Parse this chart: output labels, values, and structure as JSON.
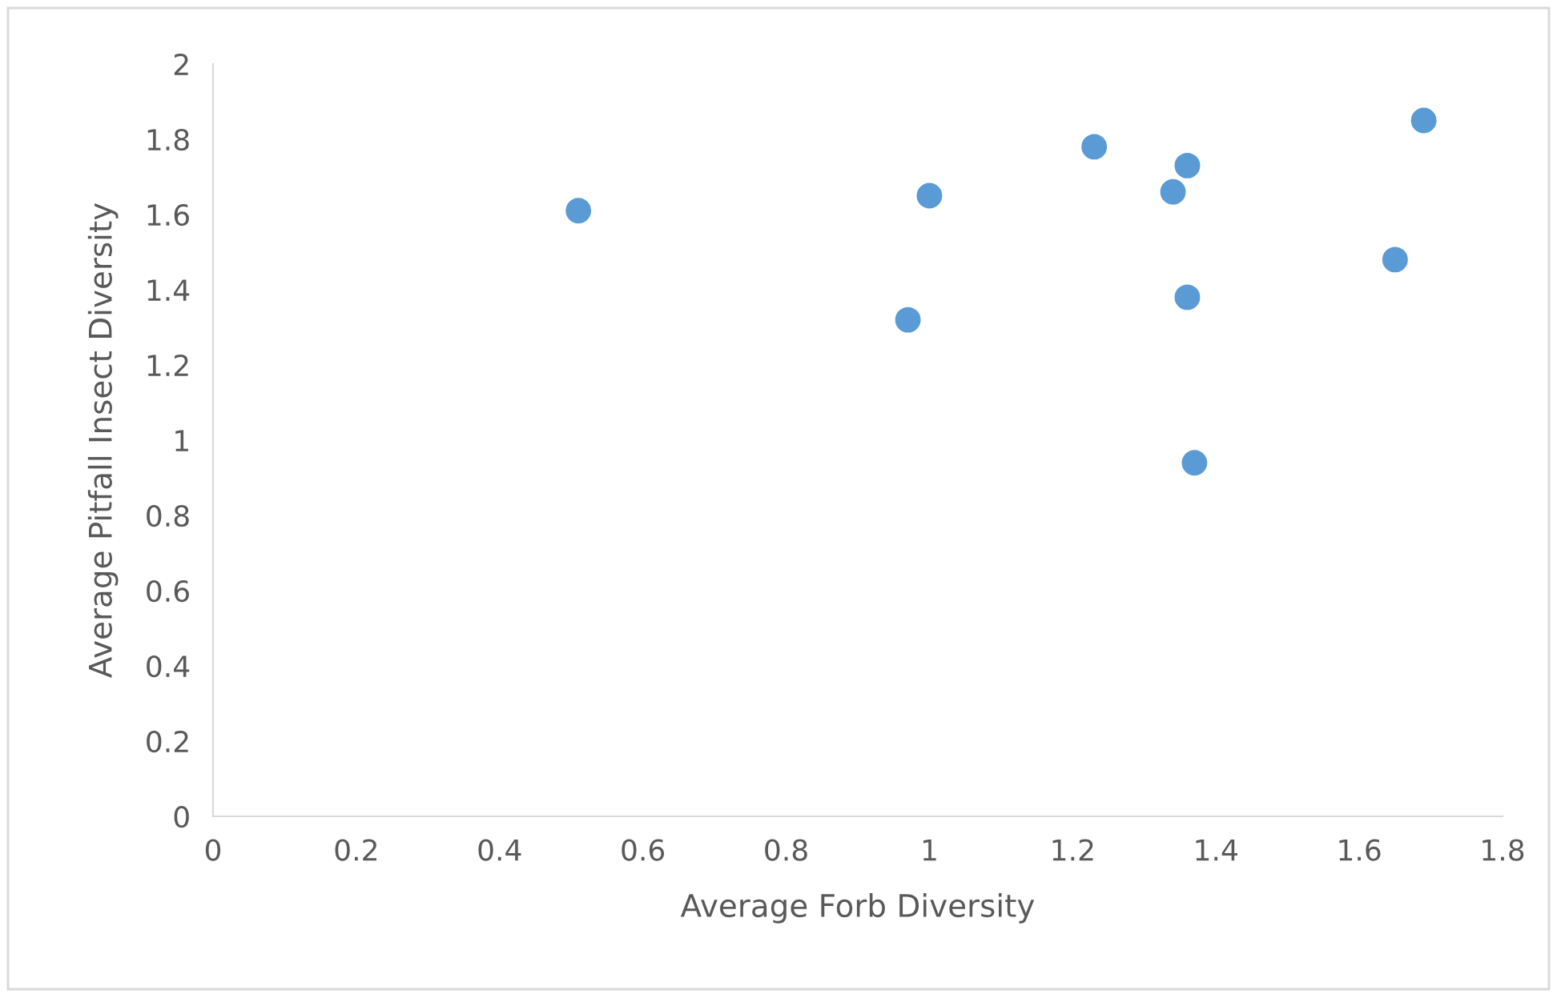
{
  "chart_data": {
    "type": "scatter",
    "xlabel": "Average Forb Diversity",
    "ylabel": "Average Pitfall Insect Diversity",
    "x": [
      0.51,
      0.97,
      1.0,
      1.23,
      1.36,
      1.34,
      1.36,
      1.37,
      1.65,
      1.69
    ],
    "series": [
      {
        "color": "#5b9bd5",
        "values": [
          1.61,
          1.32,
          1.65,
          1.78,
          1.73,
          1.66,
          1.38,
          0.94,
          1.48,
          1.85
        ]
      }
    ],
    "xlim": [
      0,
      1.8
    ],
    "xticks": [
      0,
      0.2,
      0.4,
      0.6,
      0.8,
      1,
      1.2,
      1.4,
      1.6,
      1.8
    ],
    "ylim": [
      0,
      2
    ],
    "yticks": [
      0,
      0.2,
      0.4,
      0.6,
      0.8,
      1,
      1.2,
      1.4,
      1.6,
      1.8,
      2
    ],
    "grid": false,
    "legend": false,
    "marker": "circle"
  }
}
